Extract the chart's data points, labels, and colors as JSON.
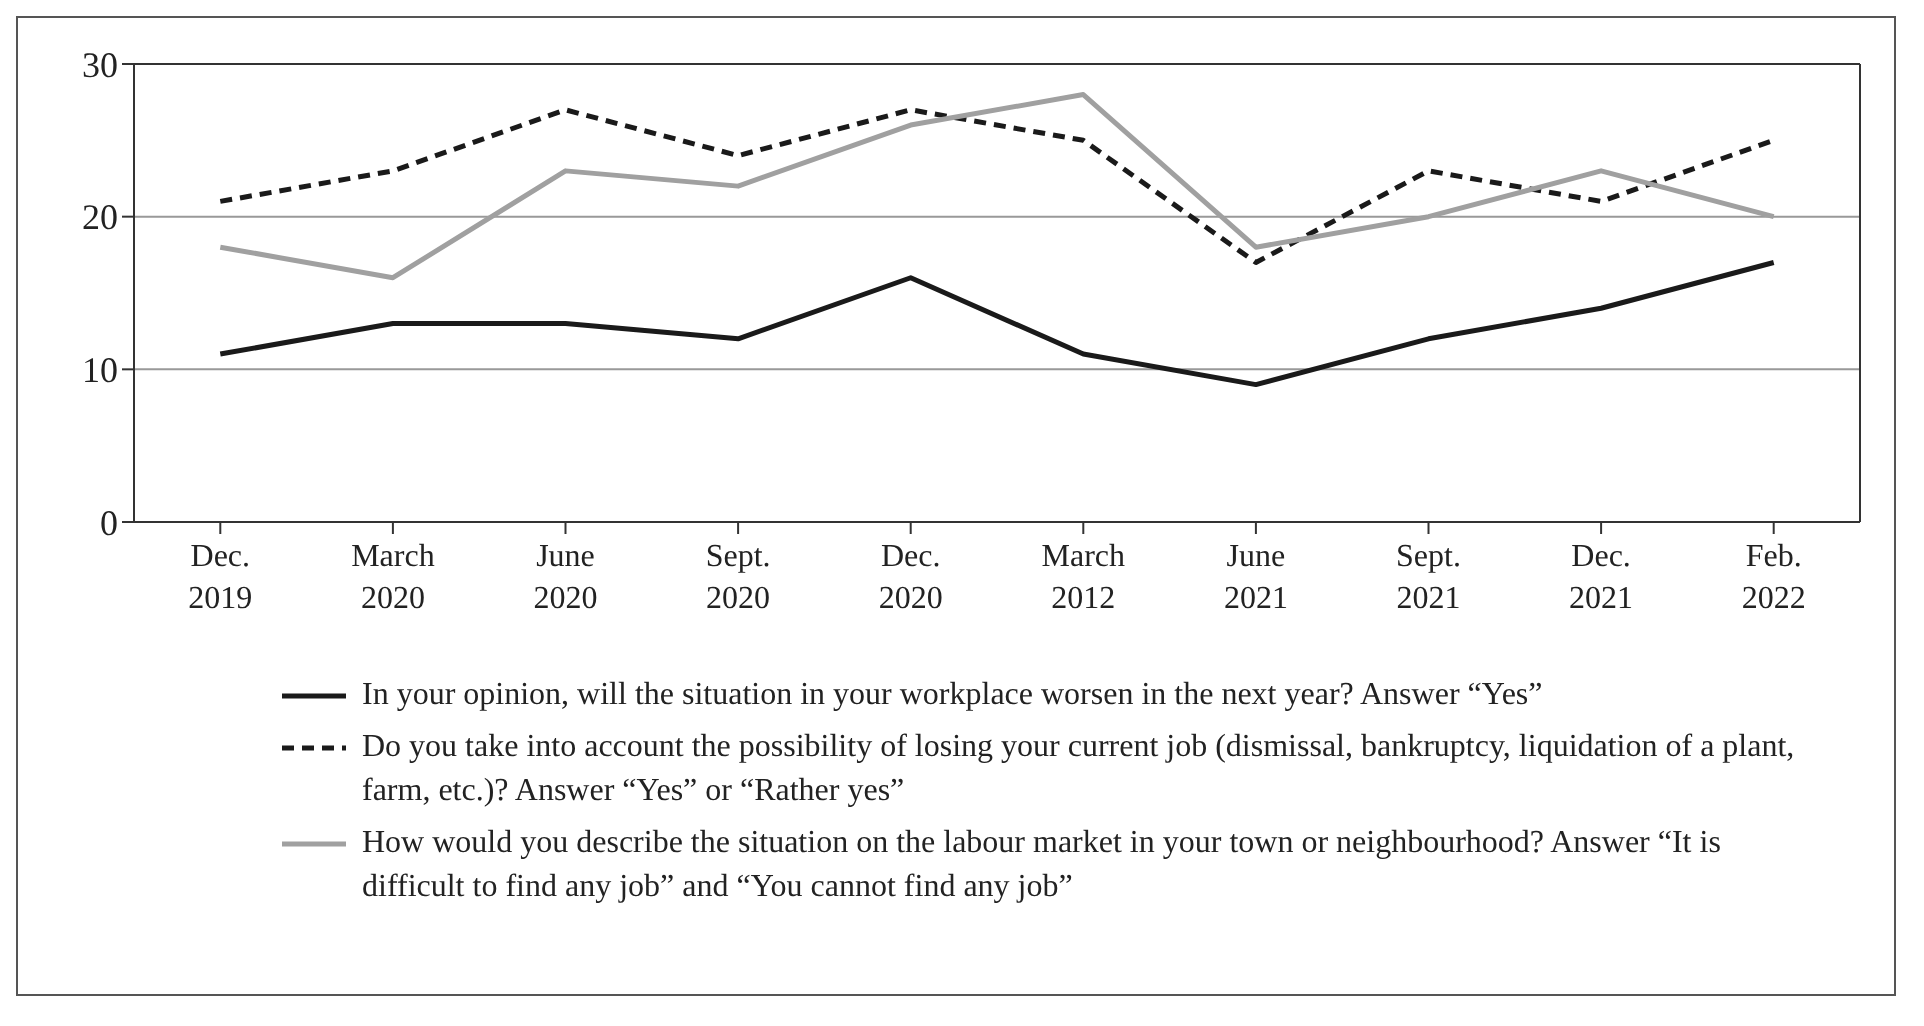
{
  "chart_data": {
    "type": "line",
    "categories": [
      "Dec.\n2019",
      "March\n2020",
      "June\n2020",
      "Sept.\n2020",
      "Dec.\n2020",
      "March\n2012",
      "June\n2021",
      "Sept.\n2021",
      "Dec.\n2021",
      "Feb.\n2022"
    ],
    "series": [
      {
        "name": "In your opinion, will the situation in your workplace worsen in the next year? Answer “Yes”",
        "color": "#1a1a1a",
        "line_style": "solid",
        "values": [
          11,
          13,
          13,
          12,
          16,
          11,
          9,
          12,
          14,
          17
        ]
      },
      {
        "name": "Do you take into account the possibility of losing your current job (dismissal, bankruptcy, liquidation of a plant, farm, etc.)? Answer “Yes” or “Rather yes”",
        "color": "#1a1a1a",
        "line_style": "dashed",
        "values": [
          21,
          23,
          27,
          24,
          27,
          25,
          17,
          23,
          21,
          25
        ]
      },
      {
        "name": "How would you describe the situation on the labour market in your town or neighbourhood? Answer “It is difficult to find any job” and “You cannot find any job”",
        "color": "#a0a0a0",
        "line_style": "solid",
        "values": [
          18,
          16,
          23,
          22,
          26,
          28,
          18,
          20,
          23,
          20
        ]
      }
    ],
    "ylim": [
      0,
      30
    ],
    "yticks": [
      0,
      10,
      20,
      30
    ],
    "grid": "y",
    "legend": "bottom",
    "marker": "none"
  }
}
